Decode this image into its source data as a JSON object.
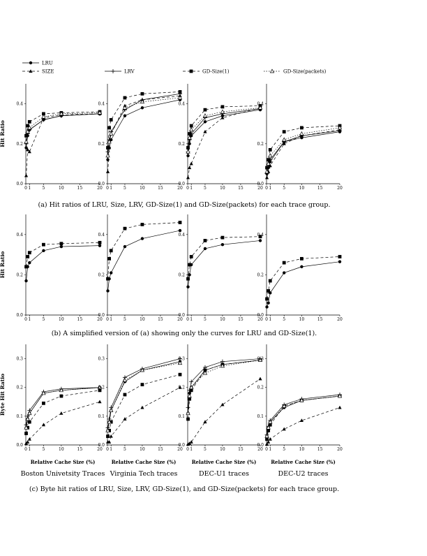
{
  "legend": [
    {
      "key": "lru",
      "label": "LRU",
      "dash": "",
      "marker": "circle"
    },
    {
      "key": "size",
      "label": "SIZE",
      "dash": "4,3",
      "marker": "triangle"
    },
    {
      "key": "lrv",
      "label": "LRV",
      "dash": "",
      "marker": "plus"
    },
    {
      "key": "gd1",
      "label": "GD-Size(1)",
      "dash": "4,3",
      "marker": "square"
    },
    {
      "key": "gdpackets",
      "label": "GD-Size(packets)",
      "dash": "1.5,2",
      "marker": "opentriangle"
    }
  ],
  "x_ticks": [
    0,
    1,
    5,
    10,
    15,
    20
  ],
  "xlabel": "Relative Cache Size (%)",
  "groups": [
    "Boston Univetsity Traces",
    "Virginia Tech traces",
    "DEC-U1 traces",
    "DEC-U2 traces"
  ],
  "chart_data": [
    {
      "id": "a",
      "type": "line",
      "ylabel": "Hit Ratio",
      "ylim": [
        0,
        0.5
      ],
      "yticks": [
        0.0,
        0.2,
        0.4
      ],
      "caption": "(a) Hit ratios of LRU, Size, LRV, GD-Size(1) and GD-Size(packets) for each trace group.",
      "x": [
        0.1,
        0.5,
        1,
        5,
        10,
        20
      ],
      "panels": [
        {
          "group": "Boston Univetsity Traces",
          "series": [
            {
              "key": "lru",
              "values": [
                0.18,
                0.24,
                0.27,
                0.32,
                0.34,
                0.35
              ]
            },
            {
              "key": "size",
              "values": [
                0.04,
                0.17,
                0.16,
                0.33,
                0.345,
                0.35
              ]
            },
            {
              "key": "lrv",
              "values": [
                0.2,
                0.25,
                0.27,
                0.32,
                0.34,
                0.35
              ]
            },
            {
              "key": "gd1",
              "values": [
                0.24,
                0.29,
                0.31,
                0.35,
                0.355,
                0.36
              ]
            },
            {
              "key": "gdpackets",
              "values": [
                0.21,
                0.26,
                0.28,
                0.335,
                0.35,
                0.355
              ]
            }
          ]
        },
        {
          "group": "Virginia Tech traces",
          "series": [
            {
              "key": "lru",
              "values": [
                0.12,
                0.18,
                0.22,
                0.34,
                0.38,
                0.42
              ]
            },
            {
              "key": "size",
              "values": [
                0.06,
                0.18,
                0.25,
                0.39,
                0.42,
                0.44
              ]
            },
            {
              "key": "lrv",
              "values": [
                0.16,
                0.22,
                0.26,
                0.37,
                0.42,
                0.45
              ]
            },
            {
              "key": "gd1",
              "values": [
                0.18,
                0.28,
                0.32,
                0.43,
                0.45,
                0.46
              ]
            },
            {
              "key": "gdpackets",
              "values": [
                0.14,
                0.21,
                0.25,
                0.38,
                0.41,
                0.43
              ]
            }
          ]
        },
        {
          "group": "DEC-U1 traces",
          "series": [
            {
              "key": "lru",
              "values": [
                0.14,
                0.2,
                0.24,
                0.31,
                0.34,
                0.37
              ]
            },
            {
              "key": "size",
              "values": [
                0.03,
                0.08,
                0.1,
                0.26,
                0.33,
                0.38
              ]
            },
            {
              "key": "lrv",
              "values": [
                0.16,
                0.22,
                0.25,
                0.33,
                0.35,
                0.375
              ]
            },
            {
              "key": "gd1",
              "values": [
                0.18,
                0.25,
                0.29,
                0.37,
                0.385,
                0.39
              ]
            },
            {
              "key": "gdpackets",
              "values": [
                0.16,
                0.23,
                0.27,
                0.34,
                0.36,
                0.38
              ]
            }
          ]
        },
        {
          "group": "DEC-U2 traces",
          "series": [
            {
              "key": "lru",
              "values": [
                0.05,
                0.08,
                0.11,
                0.21,
                0.23,
                0.26
              ]
            },
            {
              "key": "size",
              "values": [
                0.03,
                0.06,
                0.09,
                0.2,
                0.24,
                0.27
              ]
            },
            {
              "key": "lrv",
              "values": [
                0.05,
                0.08,
                0.12,
                0.21,
                0.24,
                0.265
              ]
            },
            {
              "key": "gd1",
              "values": [
                0.08,
                0.12,
                0.17,
                0.26,
                0.28,
                0.29
              ]
            },
            {
              "key": "gdpackets",
              "values": [
                0.06,
                0.1,
                0.14,
                0.22,
                0.25,
                0.28
              ]
            }
          ]
        }
      ]
    },
    {
      "id": "b",
      "type": "line",
      "ylabel": "Hit Ratio",
      "ylim": [
        0,
        0.5
      ],
      "yticks": [
        0.0,
        0.2,
        0.4
      ],
      "caption": "(b) A simplified version of (a) showing only the curves for LRU and GD-Size(1).",
      "x": [
        0.1,
        0.5,
        1,
        5,
        10,
        20
      ],
      "panels": [
        {
          "group": "Boston Univetsity Traces",
          "series": [
            {
              "key": "lru",
              "values": [
                0.17,
                0.24,
                0.26,
                0.32,
                0.34,
                0.345
              ]
            },
            {
              "key": "gd1",
              "values": [
                0.24,
                0.29,
                0.31,
                0.35,
                0.355,
                0.36
              ]
            }
          ]
        },
        {
          "group": "Virginia Tech traces",
          "series": [
            {
              "key": "lru",
              "values": [
                0.12,
                0.18,
                0.21,
                0.34,
                0.38,
                0.42
              ]
            },
            {
              "key": "gd1",
              "values": [
                0.18,
                0.28,
                0.32,
                0.43,
                0.45,
                0.46
              ]
            }
          ]
        },
        {
          "group": "DEC-U1 traces",
          "series": [
            {
              "key": "lru",
              "values": [
                0.14,
                0.2,
                0.25,
                0.33,
                0.35,
                0.37
              ]
            },
            {
              "key": "gd1",
              "values": [
                0.18,
                0.25,
                0.29,
                0.37,
                0.385,
                0.39
              ]
            }
          ]
        },
        {
          "group": "DEC-U2 traces",
          "series": [
            {
              "key": "lru",
              "values": [
                0.04,
                0.06,
                0.11,
                0.21,
                0.24,
                0.265
              ]
            },
            {
              "key": "gd1",
              "values": [
                0.08,
                0.12,
                0.17,
                0.26,
                0.28,
                0.29
              ]
            }
          ]
        }
      ]
    },
    {
      "id": "c",
      "type": "line",
      "ylabel": "Byte Hit Ratio",
      "ylim": [
        0,
        0.35
      ],
      "yticks": [
        0.0,
        0.1,
        0.2,
        0.3
      ],
      "caption": "(c) Byte hit ratios of LRU, Size, LRV, GD-Size(1), and GD-Size(packets) for each trace group.",
      "x": [
        0.1,
        0.5,
        1,
        5,
        10,
        20
      ],
      "panels": [
        {
          "group": "Boston Univetsity Traces",
          "series": [
            {
              "key": "lru",
              "values": [
                0.06,
                0.09,
                0.11,
                0.18,
                0.19,
                0.2
              ]
            },
            {
              "key": "size",
              "values": [
                0.005,
                0.01,
                0.02,
                0.07,
                0.11,
                0.15
              ]
            },
            {
              "key": "lrv",
              "values": [
                0.07,
                0.1,
                0.12,
                0.185,
                0.195,
                0.2
              ]
            },
            {
              "key": "gd1",
              "values": [
                0.04,
                0.06,
                0.08,
                0.145,
                0.17,
                0.19
              ]
            },
            {
              "key": "gdpackets",
              "values": [
                0.06,
                0.09,
                0.11,
                0.18,
                0.19,
                0.2
              ]
            }
          ]
        },
        {
          "group": "Virginia Tech traces",
          "series": [
            {
              "key": "lru",
              "values": [
                0.05,
                0.08,
                0.12,
                0.22,
                0.26,
                0.29
              ]
            },
            {
              "key": "size",
              "values": [
                0.01,
                0.01,
                0.03,
                0.09,
                0.13,
                0.2
              ]
            },
            {
              "key": "lrv",
              "values": [
                0.06,
                0.09,
                0.13,
                0.235,
                0.265,
                0.3
              ]
            },
            {
              "key": "gd1",
              "values": [
                0.03,
                0.05,
                0.08,
                0.175,
                0.21,
                0.245
              ]
            },
            {
              "key": "gdpackets",
              "values": [
                0.05,
                0.08,
                0.12,
                0.225,
                0.26,
                0.285
              ]
            }
          ]
        },
        {
          "group": "DEC-U1 traces",
          "series": [
            {
              "key": "lru",
              "values": [
                0.11,
                0.18,
                0.2,
                0.26,
                0.28,
                0.295
              ]
            },
            {
              "key": "size",
              "values": [
                0.002,
                0.005,
                0.01,
                0.08,
                0.14,
                0.23
              ]
            },
            {
              "key": "lrv",
              "values": [
                0.13,
                0.19,
                0.22,
                0.27,
                0.29,
                0.3
              ]
            },
            {
              "key": "gd1",
              "values": [
                0.09,
                0.16,
                0.19,
                0.26,
                0.28,
                0.295
              ]
            },
            {
              "key": "gdpackets",
              "values": [
                0.11,
                0.17,
                0.2,
                0.25,
                0.275,
                0.295
              ]
            }
          ]
        },
        {
          "group": "DEC-U2 traces",
          "series": [
            {
              "key": "lru",
              "values": [
                0.03,
                0.06,
                0.08,
                0.13,
                0.155,
                0.17
              ]
            },
            {
              "key": "size",
              "values": [
                0.002,
                0.01,
                0.02,
                0.055,
                0.085,
                0.13
              ]
            },
            {
              "key": "lrv",
              "values": [
                0.035,
                0.065,
                0.085,
                0.14,
                0.16,
                0.175
              ]
            },
            {
              "key": "gd1",
              "values": [
                0.02,
                0.05,
                0.07,
                0.135,
                0.155,
                0.17
              ]
            },
            {
              "key": "gdpackets",
              "values": [
                0.03,
                0.06,
                0.08,
                0.135,
                0.155,
                0.17
              ]
            }
          ]
        }
      ]
    }
  ]
}
